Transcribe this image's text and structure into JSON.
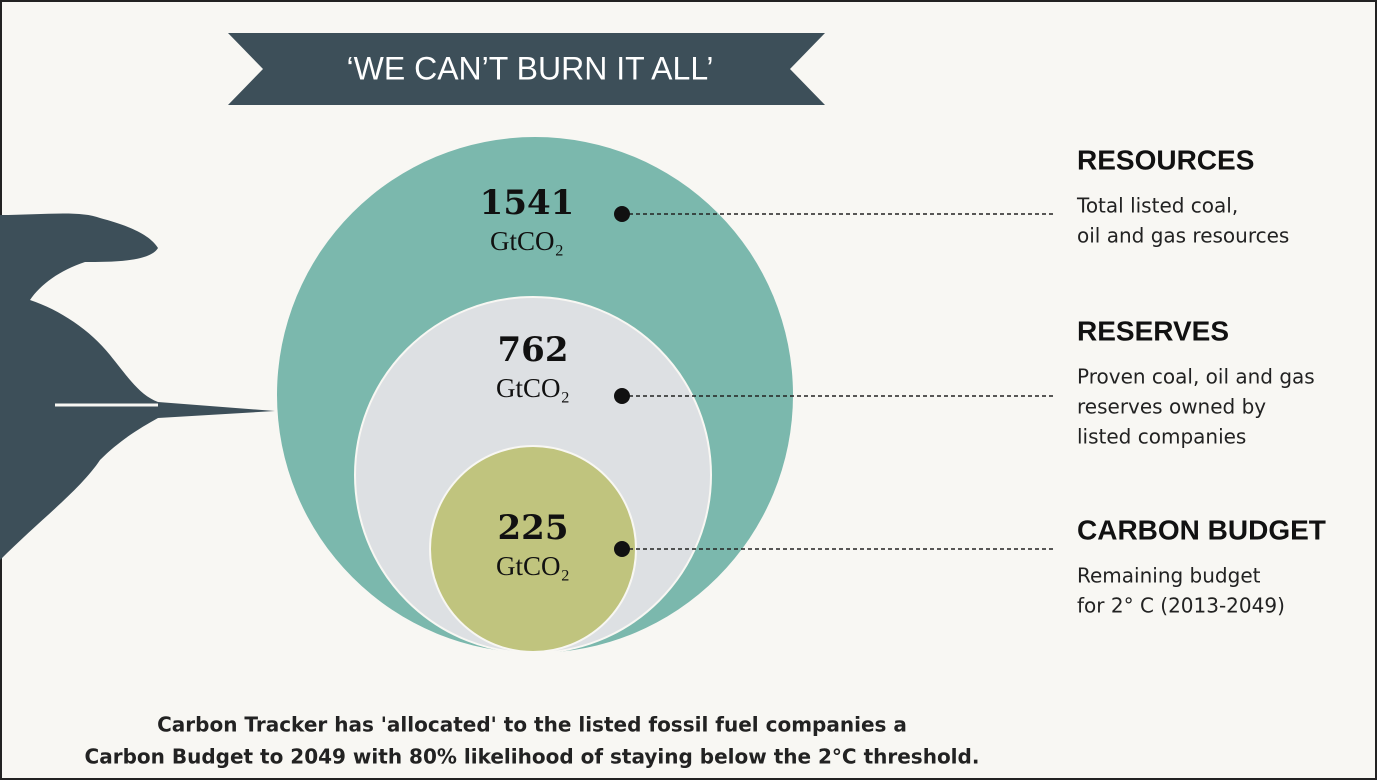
{
  "banner": {
    "title": "‘WE CAN’T BURN IT ALL’"
  },
  "circles": [
    {
      "value": 1541,
      "unit": "GtCO₂"
    },
    {
      "value": 762,
      "unit": "GtCO₂"
    },
    {
      "value": 225,
      "unit": "GtCO₂"
    }
  ],
  "labels": [
    {
      "heading": "RESOURCES",
      "lines": [
        "Total listed coal,",
        "oil and gas resources"
      ]
    },
    {
      "heading": "RESERVES",
      "lines": [
        "Proven coal, oil and gas",
        "reserves owned by",
        "listed companies"
      ]
    },
    {
      "heading": "CARBON BUDGET",
      "lines": [
        "Remaining budget",
        "for 2° C (2013-2049)"
      ]
    }
  ],
  "footer": {
    "lines": [
      "Carbon Tracker has 'allocated' to the listed fossil fuel companies a",
      "Carbon Budget to 2049 with 80% likelihood of staying below the 2°C threshold."
    ]
  }
}
